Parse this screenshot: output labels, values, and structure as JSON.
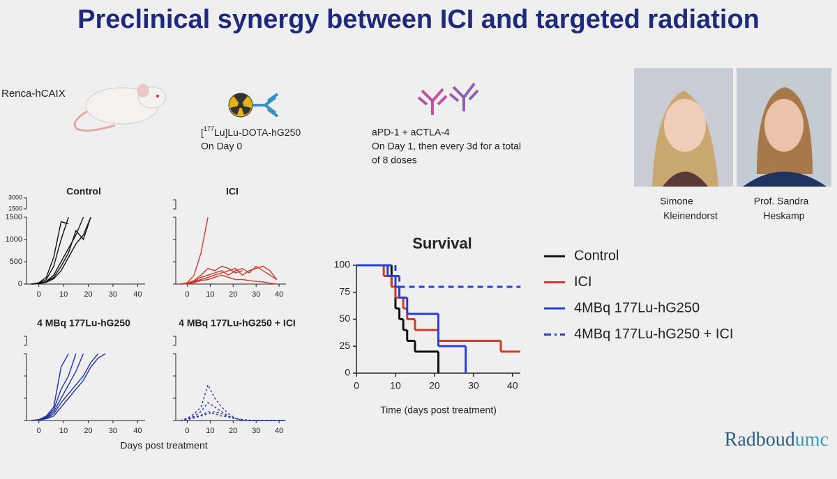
{
  "header": {
    "title": "Preclinical synergy between ICI and targeted radiation"
  },
  "setup": {
    "model": "Renca-hCAIX",
    "radio": {
      "prefix": "[",
      "superscript": "177",
      "rest": "Lu]Lu-DOTA-hG250",
      "schedule": "On Day 0"
    },
    "ici": {
      "drugs": "aPD-1 + aCTLA-4",
      "schedule_1": "On Day 1, then every 3d for a total",
      "schedule_2": "of 8 doses"
    }
  },
  "people": [
    {
      "line1": "Simone",
      "line2": "Kleinendorst"
    },
    {
      "line1": "Prof. Sandra",
      "line2": "Heskamp"
    }
  ],
  "logo": {
    "main": "Radboud",
    "suffix": "umc"
  },
  "panels_xlabel": "Days post treatment",
  "chart_data": [
    {
      "type": "line",
      "title": "Control",
      "color": "#111111",
      "line_style": "solid",
      "xlim": [
        -5,
        43
      ],
      "xticks": [
        0,
        10,
        20,
        30,
        40
      ],
      "ylim": [
        0,
        1500
      ],
      "yticks": [
        0,
        500,
        1000,
        1500
      ],
      "upper_ylim": [
        1500,
        3000
      ],
      "upper_yticks": [
        1500,
        3000
      ],
      "ytick_labels": true,
      "x": [
        -3,
        0,
        3,
        6,
        9,
        12,
        15,
        18,
        21
      ],
      "series": [
        {
          "values": [
            0,
            30,
            150,
            600,
            1400,
            1350,
            null,
            null,
            null
          ]
        },
        {
          "values": [
            0,
            20,
            100,
            400,
            1000,
            1500,
            null,
            null,
            null
          ]
        },
        {
          "values": [
            0,
            10,
            60,
            200,
            500,
            800,
            1100,
            1500,
            null
          ]
        },
        {
          "values": [
            0,
            15,
            50,
            150,
            400,
            700,
            1200,
            1000,
            1500
          ]
        },
        {
          "values": [
            0,
            10,
            40,
            120,
            300,
            600,
            900,
            1100,
            1500
          ]
        }
      ]
    },
    {
      "type": "line",
      "title": "ICI",
      "color": "#d0392b",
      "line_style": "solid",
      "xlim": [
        -5,
        43
      ],
      "xticks": [
        0,
        10,
        20,
        30,
        40
      ],
      "ylim": [
        0,
        1500
      ],
      "yticks": [
        0,
        500,
        1000,
        1500
      ],
      "ytick_labels": false,
      "x": [
        -3,
        0,
        3,
        6,
        9,
        12,
        15,
        18,
        21,
        24,
        27,
        30,
        33,
        36,
        39
      ],
      "series": [
        {
          "values": [
            0,
            30,
            200,
            700,
            1500,
            null,
            null,
            null,
            null,
            null,
            null,
            null,
            null,
            null,
            null
          ]
        },
        {
          "values": [
            0,
            20,
            80,
            200,
            350,
            300,
            400,
            350,
            250,
            300,
            null,
            null,
            null,
            null,
            null
          ]
        },
        {
          "values": [
            0,
            10,
            60,
            150,
            200,
            250,
            300,
            200,
            300,
            350,
            250,
            400,
            300,
            200,
            100
          ]
        },
        {
          "values": [
            0,
            10,
            50,
            100,
            150,
            200,
            250,
            300,
            350,
            200,
            300,
            350,
            400,
            300,
            100
          ]
        },
        {
          "values": [
            0,
            10,
            30,
            80,
            100,
            150,
            200,
            150,
            100,
            100,
            80,
            60,
            50,
            20,
            0
          ]
        }
      ]
    },
    {
      "type": "line",
      "title": "4 MBq 177Lu-hG250",
      "color": "#2233aa",
      "line_style": "solid",
      "xlim": [
        -5,
        43
      ],
      "xticks": [
        0,
        10,
        20,
        30,
        40
      ],
      "ylim": [
        0,
        1500
      ],
      "yticks": [
        0,
        500,
        1000,
        1500
      ],
      "ytick_labels": false,
      "x": [
        -3,
        0,
        3,
        6,
        9,
        12,
        15,
        18,
        21,
        24,
        27
      ],
      "series": [
        {
          "values": [
            0,
            20,
            100,
            300,
            1200,
            1500,
            null,
            null,
            null,
            null,
            null
          ]
        },
        {
          "values": [
            0,
            20,
            80,
            250,
            700,
            1000,
            1500,
            null,
            null,
            null,
            null
          ]
        },
        {
          "values": [
            0,
            15,
            60,
            200,
            500,
            800,
            1100,
            1500,
            null,
            null,
            null
          ]
        },
        {
          "values": [
            0,
            10,
            50,
            150,
            400,
            600,
            800,
            1000,
            1300,
            1500,
            null
          ]
        },
        {
          "values": [
            0,
            10,
            40,
            100,
            300,
            500,
            700,
            900,
            1200,
            1400,
            1500
          ]
        }
      ]
    },
    {
      "type": "line",
      "title": "4 MBq 177Lu-hG250 + ICI",
      "color": "#2233aa",
      "line_style": "dashed",
      "xlim": [
        -5,
        43
      ],
      "xticks": [
        0,
        10,
        20,
        30,
        40
      ],
      "ylim": [
        0,
        1500
      ],
      "yticks": [
        0,
        500,
        1000,
        1500
      ],
      "ytick_labels": false,
      "x": [
        -3,
        0,
        3,
        6,
        9,
        12,
        15,
        18,
        21,
        24,
        27,
        30,
        36,
        42
      ],
      "series": [
        {
          "values": [
            0,
            50,
            150,
            300,
            800,
            500,
            300,
            150,
            50,
            0,
            0,
            0,
            0,
            0
          ]
        },
        {
          "values": [
            0,
            30,
            100,
            200,
            400,
            300,
            200,
            100,
            50,
            20,
            0,
            0,
            0,
            0
          ]
        },
        {
          "values": [
            0,
            40,
            80,
            120,
            200,
            150,
            100,
            80,
            40,
            20,
            0,
            0,
            0,
            0
          ]
        },
        {
          "values": [
            0,
            20,
            60,
            100,
            150,
            200,
            150,
            80,
            40,
            20,
            10,
            0,
            0,
            0
          ]
        }
      ]
    },
    {
      "type": "step",
      "title": "Survival",
      "x_label": "Time (days post treatment)",
      "xlim": [
        0,
        42
      ],
      "xticks": [
        0,
        10,
        20,
        30,
        40
      ],
      "ylim": [
        0,
        100
      ],
      "yticks": [
        0,
        25,
        50,
        75,
        100
      ],
      "series": [
        {
          "name": "Control",
          "color": "#111111",
          "line_style": "solid",
          "x": [
            0,
            9,
            10,
            11,
            12,
            13,
            15,
            21
          ],
          "values": [
            100,
            80,
            60,
            50,
            40,
            30,
            20,
            0
          ]
        },
        {
          "name": "ICI",
          "color": "#d0392b",
          "line_style": "solid",
          "x": [
            0,
            7,
            9,
            10,
            12,
            13,
            15,
            21,
            37,
            42
          ],
          "values": [
            100,
            90,
            80,
            70,
            60,
            50,
            40,
            30,
            20,
            20
          ]
        },
        {
          "name": "4MBq 177Lu-hG250",
          "color": "#2a3fd0",
          "line_style": "solid",
          "x": [
            0,
            8,
            10,
            11,
            13,
            21,
            28
          ],
          "values": [
            100,
            90,
            80,
            70,
            55,
            25,
            0
          ]
        },
        {
          "name": "4MBq 177Lu-hG250 + ICI",
          "color": "#2a3fd0",
          "line_style": "dashed",
          "x": [
            0,
            10,
            11,
            42
          ],
          "values": [
            100,
            90,
            80,
            80
          ]
        }
      ]
    }
  ]
}
